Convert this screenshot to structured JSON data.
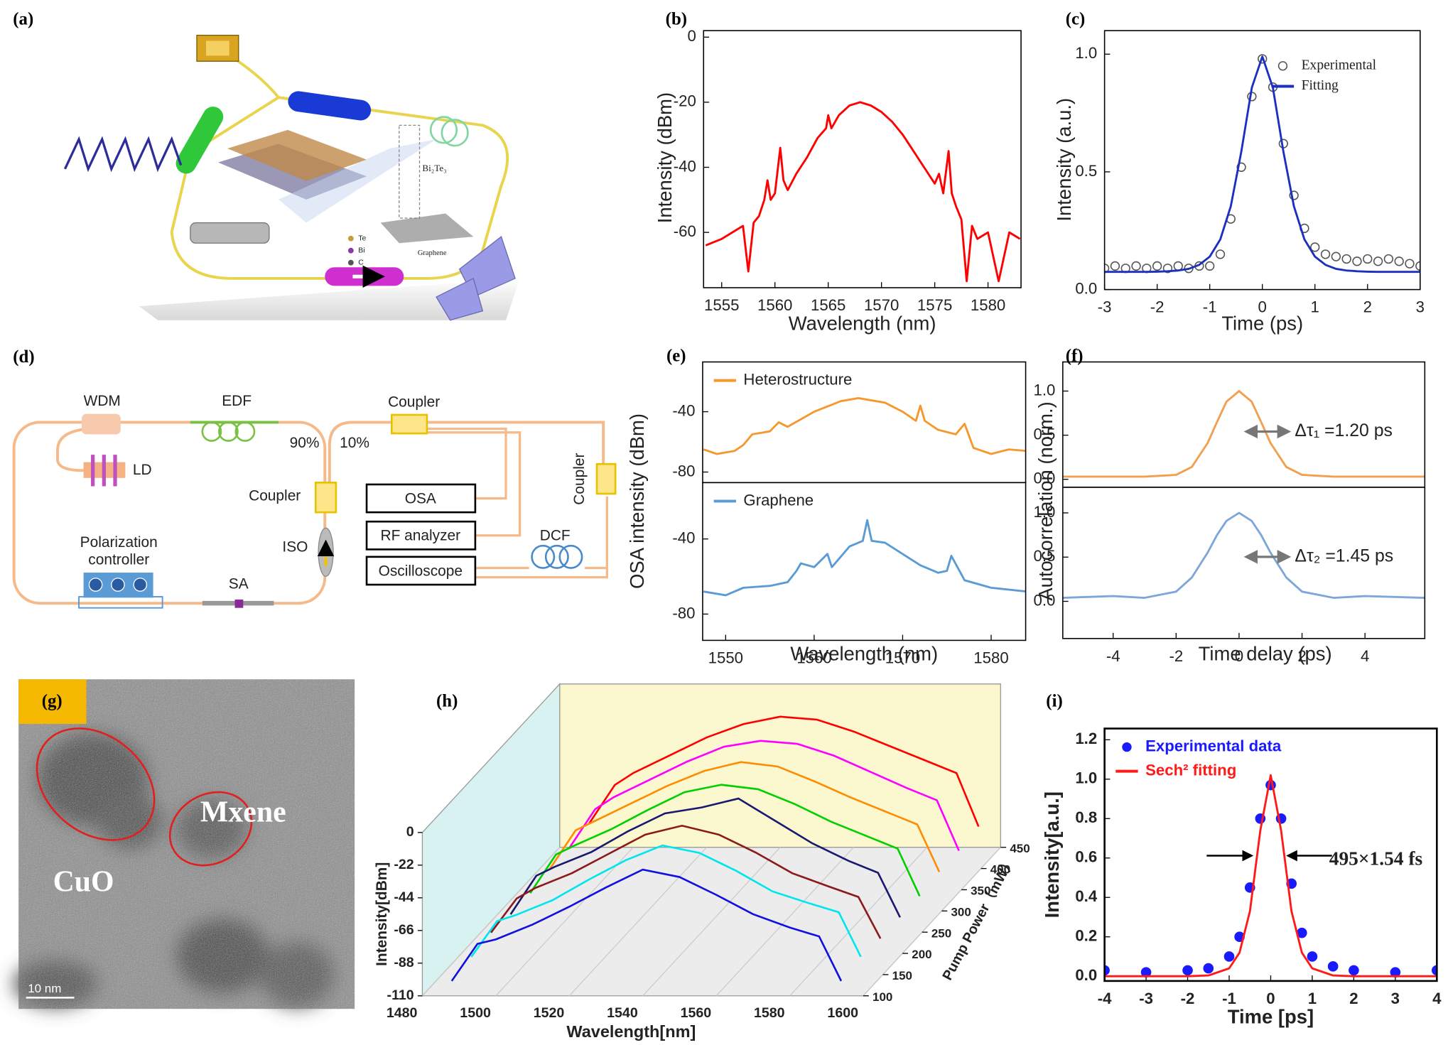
{
  "illustration": {
    "panel": "(a)",
    "labels": {
      "material": "Bi₂Te₃",
      "te": "Te",
      "bi": "Bi",
      "c": "C",
      "substrate": "Graphene"
    }
  },
  "diagram": {
    "panel": "(d)",
    "nodes": [
      {
        "label": "WDM"
      },
      {
        "label": "EDF"
      },
      {
        "label": "LD"
      },
      {
        "label": "90%"
      },
      {
        "label": "10%"
      },
      {
        "label": "Coupler"
      },
      {
        "label": "Coupler"
      },
      {
        "label": "Coupler"
      },
      {
        "label": "ISO"
      },
      {
        "label": "SA"
      },
      {
        "label_lines": [
          "Polarization",
          "controller"
        ]
      },
      {
        "label": "OSA"
      },
      {
        "label": "RF analyzer"
      },
      {
        "label": "Oscilloscope"
      },
      {
        "label": "DCF"
      }
    ]
  },
  "image": {
    "panel": "(g)",
    "labels": [
      "Mxene",
      "CuO"
    ],
    "scale_bar": "10 nm"
  },
  "chart_data": [
    {
      "type": "line",
      "panel": "(b)",
      "xlabel": "Wavelength (nm)",
      "ylabel": "Intensity (dBm)",
      "x": [
        1553.5,
        1555,
        1556,
        1557,
        1557.5,
        1558,
        1558.5,
        1559,
        1559.3,
        1559.6,
        1560,
        1560.5,
        1560.8,
        1561.2,
        1562,
        1563,
        1564,
        1564.8,
        1565,
        1565.3,
        1566,
        1567,
        1568,
        1569,
        1570,
        1571,
        1572,
        1573,
        1574,
        1575,
        1575.4,
        1575.8,
        1576.3,
        1576.6,
        1577,
        1577.5,
        1578,
        1578.5,
        1579,
        1580,
        1581,
        1582,
        1583
      ],
      "series": [
        {
          "color": "#ff0000",
          "values": [
            -64,
            -62,
            -60,
            -58,
            -72,
            -57,
            -55,
            -50,
            -44,
            -50,
            -48,
            -34,
            -44,
            -47,
            -42,
            -37,
            -31,
            -28,
            -24,
            -28,
            -24,
            -21,
            -20,
            -21,
            -23,
            -26,
            -30,
            -35,
            -40,
            -45,
            -42,
            -48,
            -35,
            -48,
            -52,
            -56,
            -75,
            -58,
            -62,
            -60,
            -75,
            -60,
            -62
          ]
        }
      ],
      "xlim": [
        1553.3,
        1583.1
      ],
      "ylim": [
        -77,
        2
      ],
      "xticks": [
        1555,
        1560,
        1565,
        1570,
        1575,
        1580
      ],
      "yticks": [
        0,
        -20,
        -40,
        -60
      ]
    },
    {
      "type": "line",
      "panel": "(c)",
      "xlabel": "Time (ps)",
      "ylabel": "Intensity (a.u.)",
      "legend": "upper right",
      "x": [
        -3,
        -2.8,
        -2.6,
        -2.4,
        -2.2,
        -2,
        -1.8,
        -1.6,
        -1.4,
        -1.2,
        -1,
        -0.8,
        -0.6,
        -0.4,
        -0.2,
        0,
        0.2,
        0.4,
        0.6,
        0.8,
        1,
        1.2,
        1.4,
        1.6,
        1.8,
        2,
        2.2,
        2.4,
        2.6,
        2.8,
        3
      ],
      "series": [
        {
          "name": "Experimental",
          "mode": "markers",
          "color": "#555555",
          "values": [
            0.09,
            0.1,
            0.09,
            0.1,
            0.09,
            0.1,
            0.09,
            0.1,
            0.09,
            0.1,
            0.1,
            0.15,
            0.3,
            0.52,
            0.82,
            0.98,
            0.86,
            0.62,
            0.4,
            0.26,
            0.18,
            0.15,
            0.14,
            0.13,
            0.12,
            0.13,
            0.12,
            0.13,
            0.12,
            0.11,
            0.1
          ]
        },
        {
          "name": "Fitting",
          "mode": "lines",
          "color": "#1c2fbf",
          "values": [
            0.075,
            0.075,
            0.075,
            0.075,
            0.075,
            0.076,
            0.078,
            0.081,
            0.088,
            0.105,
            0.14,
            0.213,
            0.354,
            0.586,
            0.858,
            0.99,
            0.858,
            0.586,
            0.354,
            0.213,
            0.14,
            0.105,
            0.088,
            0.081,
            0.078,
            0.076,
            0.075,
            0.075,
            0.075,
            0.075,
            0.075
          ]
        }
      ],
      "xlim": [
        -3,
        3
      ],
      "ylim": [
        0,
        1.1
      ],
      "xticks": [
        -3,
        -2,
        -1,
        0,
        1,
        2,
        3
      ],
      "yticks": [
        {
          "value": 0,
          "label": "0.0"
        },
        0.5,
        {
          "value": 1,
          "label": "1.0"
        }
      ]
    },
    {
      "type": "line",
      "panel": "(e)",
      "ylabel": "OSA intensity (dBm)",
      "legend": "upper left",
      "x": [
        1547.5,
        1549,
        1551,
        1552,
        1553,
        1555,
        1556,
        1557,
        1560,
        1563,
        1565,
        1568,
        1570,
        1571.5,
        1572,
        1572.5,
        1574,
        1576,
        1577,
        1578,
        1580,
        1582,
        1584
      ],
      "series": [
        {
          "name": "Heterostructure",
          "color": "#f5992e",
          "values": [
            -65,
            -68,
            -66,
            -62,
            -55,
            -53,
            -47,
            -50,
            -40,
            -33,
            -31,
            -34,
            -40,
            -46,
            -36,
            -46,
            -52,
            -55,
            -48,
            -64,
            -68,
            -65,
            -66
          ]
        }
      ],
      "xlim": [
        1547.4,
        1583.9
      ],
      "ylim": [
        -87,
        -7
      ],
      "yticks": [
        -40,
        -80
      ]
    },
    {
      "type": "line",
      "xlabel": "Wavelength (nm)",
      "legend": "upper left",
      "x": [
        1547.5,
        1550,
        1552,
        1555,
        1557,
        1558,
        1558.5,
        1560,
        1561.5,
        1562,
        1564,
        1565.5,
        1566,
        1566.5,
        1568,
        1570,
        1572,
        1574,
        1575,
        1575.5,
        1577,
        1580,
        1584
      ],
      "series": [
        {
          "name": "Graphene",
          "color": "#5b9bd5",
          "values": [
            -68,
            -70,
            -66,
            -65,
            -63,
            -57,
            -53,
            -55,
            -48,
            -55,
            -44,
            -41,
            -30,
            -41,
            -42,
            -48,
            -54,
            -58,
            -57,
            -49,
            -62,
            -66,
            -68
          ]
        }
      ],
      "xlim": [
        1547.4,
        1583.9
      ],
      "ylim": [
        -94,
        -10
      ],
      "xticks": [
        1550,
        1560,
        1570,
        1580
      ],
      "yticks": [
        -40,
        -80
      ]
    },
    {
      "type": "line",
      "panel": "(f)",
      "ylabel": "Autocorrelation (norm.)",
      "annotation": "Δτ₁ =1.20 ps",
      "x": [
        -5.6,
        -4,
        -3,
        -2,
        -1.5,
        -1,
        -0.7,
        -0.4,
        0,
        0.4,
        0.7,
        1,
        1.5,
        2,
        3,
        4,
        5.9
      ],
      "series": [
        {
          "color": "#f0a050",
          "values": [
            0.03,
            0.03,
            0.03,
            0.05,
            0.14,
            0.41,
            0.65,
            0.88,
            1.0,
            0.88,
            0.65,
            0.41,
            0.14,
            0.05,
            0.03,
            0.03,
            0.03
          ]
        }
      ],
      "xlim": [
        -5.6,
        5.9
      ],
      "ylim": [
        -0.09,
        1.33
      ],
      "yticks": [
        {
          "value": 0,
          "label": "0.0"
        },
        0.5,
        {
          "value": 1,
          "label": "1.0"
        }
      ]
    },
    {
      "type": "line",
      "xlabel": "Time delay (ps)",
      "annotation": "Δτ₂ =1.45 ps",
      "x": [
        -5.6,
        -4,
        -3,
        -2,
        -1.5,
        -1,
        -0.7,
        -0.4,
        0,
        0.4,
        0.7,
        1,
        1.5,
        2,
        3,
        4,
        5.9
      ],
      "series": [
        {
          "color": "#7ea6d8",
          "values": [
            0.04,
            0.06,
            0.04,
            0.11,
            0.27,
            0.55,
            0.75,
            0.91,
            1.0,
            0.91,
            0.75,
            0.55,
            0.27,
            0.11,
            0.04,
            0.06,
            0.04
          ]
        }
      ],
      "xlim": [
        -5.6,
        5.9
      ],
      "ylim": [
        -0.42,
        1.29
      ],
      "xticks": [
        -4,
        -2,
        0,
        2,
        4
      ],
      "yticks": [
        {
          "value": 0,
          "label": "0.0"
        },
        0.5,
        {
          "value": 1,
          "label": "1.0"
        }
      ]
    },
    {
      "type": "waterfall",
      "panel": "(h)",
      "xlabel": "Wavelength[nm]",
      "ylabel": "Intensity[dBm]",
      "zlabel": "Pump Power（mW）",
      "x": [
        1488,
        1495,
        1500,
        1510,
        1520,
        1530,
        1540,
        1550,
        1560,
        1570,
        1580,
        1588,
        1594
      ],
      "series": [
        {
          "color": "#1010e0",
          "values": [
            -100,
            -75,
            -72,
            -62,
            -50,
            -37,
            -25,
            -30,
            -42,
            -55,
            -64,
            -70,
            -100
          ]
        },
        {
          "color": "#00e5ee",
          "values": [
            -98,
            -74,
            -70,
            -60,
            -46,
            -33,
            -23,
            -28,
            -40,
            -54,
            -62,
            -68,
            -98
          ]
        },
        {
          "color": "#8b1a1a",
          "values": [
            -96,
            -73,
            -66,
            -56,
            -43,
            -30,
            -24,
            -30,
            -42,
            -56,
            -65,
            -72,
            -100
          ]
        },
        {
          "color": "#191970",
          "values": [
            -98,
            -72,
            -66,
            -56,
            -42,
            -30,
            -26,
            -20,
            -35,
            -50,
            -62,
            -70,
            -100
          ]
        },
        {
          "color": "#00d000",
          "values": [
            -98,
            -72,
            -66,
            -55,
            -42,
            -30,
            -25,
            -28,
            -38,
            -50,
            -60,
            -68,
            -100
          ]
        },
        {
          "color": "#ff8c00",
          "values": [
            -96,
            -70,
            -64,
            -52,
            -40,
            -30,
            -24,
            -27,
            -37,
            -48,
            -58,
            -66,
            -98
          ]
        },
        {
          "color": "#ff00ff",
          "values": [
            -96,
            -70,
            -62,
            -50,
            -38,
            -28,
            -24,
            -26,
            -34,
            -45,
            -56,
            -64,
            -98
          ]
        },
        {
          "color": "#ff0000",
          "values": [
            -94,
            -68,
            -60,
            -48,
            -36,
            -27,
            -22,
            -24,
            -32,
            -42,
            -52,
            -60,
            -96
          ]
        }
      ],
      "xlim": [
        1480,
        1600
      ],
      "ylim": [
        -110,
        0
      ],
      "zlim": [
        100,
        450
      ],
      "xticks": [
        1480,
        1500,
        1520,
        1540,
        1560,
        1580,
        1600
      ],
      "yticks": [
        0,
        -22,
        -44,
        -66,
        -88,
        -110
      ],
      "zticks": [
        100,
        150,
        200,
        250,
        300,
        350,
        400,
        450
      ]
    },
    {
      "type": "line",
      "panel": "(i)",
      "xlabel": "Time [ps]",
      "ylabel": "Intensity[a.u.]",
      "legend": "upper left",
      "annotation": "495×1.54 fs",
      "x": [
        -4,
        -3,
        -2,
        -1.5,
        -1,
        -0.75,
        -0.5,
        -0.25,
        0,
        0.25,
        0.5,
        0.75,
        1,
        1.5,
        2,
        3,
        4
      ],
      "series": [
        {
          "name": "Experimental data",
          "mode": "markers",
          "color": "#1a1aff",
          "values": [
            0.03,
            0.02,
            0.03,
            0.04,
            0.1,
            0.2,
            0.45,
            0.8,
            0.97,
            0.8,
            0.47,
            0.22,
            0.1,
            0.05,
            0.03,
            0.02,
            0.03
          ]
        },
        {
          "name": "Sech² fitting",
          "mode": "lines",
          "color": "#ff1a1a",
          "values": [
            0,
            0,
            0,
            0.004,
            0.04,
            0.12,
            0.33,
            0.74,
            1.02,
            0.74,
            0.33,
            0.12,
            0.04,
            0.004,
            0,
            0,
            0
          ]
        }
      ],
      "xlim": [
        -4,
        4
      ],
      "ylim": [
        -0.024,
        1.257
      ],
      "xticks": [
        -4,
        -3,
        -2,
        -1,
        0,
        1,
        2,
        3,
        4
      ],
      "yticks": [
        {
          "value": 0,
          "label": "0.0"
        },
        0.2,
        0.4,
        0.6,
        0.8,
        {
          "value": 1,
          "label": "1.0"
        },
        1.2
      ]
    }
  ]
}
